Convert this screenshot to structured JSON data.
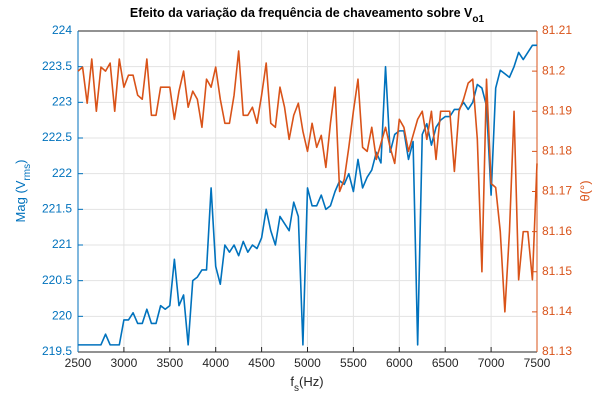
{
  "chart_data": {
    "type": "line",
    "title": "Efeito da variação da frequência de chaveamento sobre V",
    "title_subscript": "o1",
    "x_label": "f",
    "x_label_subscript": "s",
    "x_label_suffix": "(Hz)",
    "y_label": "Mag (V",
    "y_label_subscript": "rms",
    "y_label_suffix": ")",
    "y2_label": "θ(°)",
    "x": [
      2500,
      2550,
      2600,
      2650,
      2700,
      2750,
      2800,
      2850,
      2900,
      2950,
      3000,
      3050,
      3100,
      3150,
      3200,
      3250,
      3300,
      3350,
      3400,
      3450,
      3500,
      3550,
      3600,
      3650,
      3700,
      3750,
      3800,
      3850,
      3900,
      3950,
      4000,
      4050,
      4100,
      4150,
      4200,
      4250,
      4300,
      4350,
      4400,
      4450,
      4500,
      4550,
      4600,
      4650,
      4700,
      4750,
      4800,
      4850,
      4900,
      4950,
      5000,
      5050,
      5100,
      5150,
      5200,
      5250,
      5300,
      5350,
      5400,
      5450,
      5500,
      5550,
      5600,
      5650,
      5700,
      5750,
      5800,
      5850,
      5900,
      5950,
      6000,
      6050,
      6100,
      6150,
      6200,
      6250,
      6300,
      6350,
      6400,
      6450,
      6500,
      6550,
      6600,
      6650,
      6700,
      6750,
      6800,
      6850,
      6900,
      6950,
      7000,
      7050,
      7100,
      7150,
      7200,
      7250,
      7300,
      7350,
      7400,
      7450,
      7500
    ],
    "series": [
      {
        "name": "Mag",
        "color": "#0072BD",
        "values": [
          219.6,
          219.6,
          219.6,
          219.6,
          219.6,
          219.6,
          219.75,
          219.6,
          219.6,
          219.6,
          219.95,
          219.95,
          220.05,
          219.9,
          219.9,
          220.1,
          219.9,
          219.9,
          220.15,
          220.1,
          220.15,
          220.8,
          220.15,
          220.3,
          219.6,
          220.5,
          220.55,
          220.65,
          220.65,
          221.8,
          220.7,
          220.45,
          221.0,
          220.9,
          221.0,
          220.85,
          221.05,
          220.9,
          221.0,
          220.95,
          221.1,
          221.5,
          221.2,
          221.0,
          221.4,
          221.3,
          221.2,
          221.6,
          221.4,
          219.6,
          221.8,
          221.55,
          221.55,
          221.7,
          221.5,
          221.55,
          221.75,
          221.9,
          221.85,
          222.0,
          221.75,
          222.2,
          221.8,
          221.95,
          222.05,
          222.3,
          222.15,
          223.5,
          222.3,
          222.55,
          222.6,
          222.6,
          222.2,
          222.45,
          219.6,
          222.55,
          222.7,
          222.4,
          222.65,
          222.75,
          222.8,
          222.8,
          222.9,
          222.9,
          223.0,
          222.9,
          223.0,
          223.25,
          223.2,
          222.95,
          221.7,
          223.2,
          223.45,
          223.4,
          223.35,
          223.5,
          223.7,
          223.6,
          223.7,
          223.8,
          223.8
        ]
      },
      {
        "name": "θ",
        "color": "#D95319",
        "axis": "y2",
        "values": [
          81.2,
          81.201,
          81.192,
          81.203,
          81.19,
          81.201,
          81.2,
          81.202,
          81.19,
          81.203,
          81.196,
          81.199,
          81.199,
          81.194,
          81.193,
          81.203,
          81.189,
          81.189,
          81.196,
          81.196,
          81.196,
          81.188,
          81.195,
          81.2,
          81.191,
          81.195,
          81.193,
          81.186,
          81.198,
          81.196,
          81.201,
          81.193,
          81.187,
          81.187,
          81.194,
          81.205,
          81.189,
          81.189,
          81.191,
          81.187,
          81.194,
          81.202,
          81.187,
          81.186,
          81.196,
          81.191,
          81.183,
          81.189,
          81.192,
          81.185,
          81.18,
          81.187,
          81.181,
          81.184,
          81.176,
          81.187,
          81.196,
          81.17,
          81.173,
          81.181,
          81.19,
          81.198,
          81.181,
          81.18,
          81.186,
          81.178,
          81.182,
          81.186,
          81.181,
          81.177,
          81.188,
          81.186,
          81.18,
          81.184,
          81.188,
          81.19,
          81.183,
          81.19,
          81.178,
          81.19,
          81.19,
          81.19,
          81.175,
          81.19,
          81.193,
          81.197,
          81.198,
          81.183,
          81.15,
          81.198,
          81.172,
          81.171,
          81.16,
          81.14,
          81.16,
          81.19,
          81.148,
          81.16,
          81.16,
          81.148,
          81.177
        ]
      }
    ],
    "xlim": [
      2500,
      7500
    ],
    "xticks": [
      2500,
      3000,
      3500,
      4000,
      4500,
      5000,
      5500,
      6000,
      6500,
      7000,
      7500
    ],
    "ylim": [
      219.5,
      224
    ],
    "yticks": [
      219.5,
      220,
      220.5,
      221,
      221.5,
      222,
      222.5,
      223,
      223.5,
      224
    ],
    "y2lim": [
      81.13,
      81.21
    ],
    "y2ticks": [
      81.13,
      81.14,
      81.15,
      81.16,
      81.17,
      81.18,
      81.19,
      81.2,
      81.21
    ],
    "grid": true
  }
}
